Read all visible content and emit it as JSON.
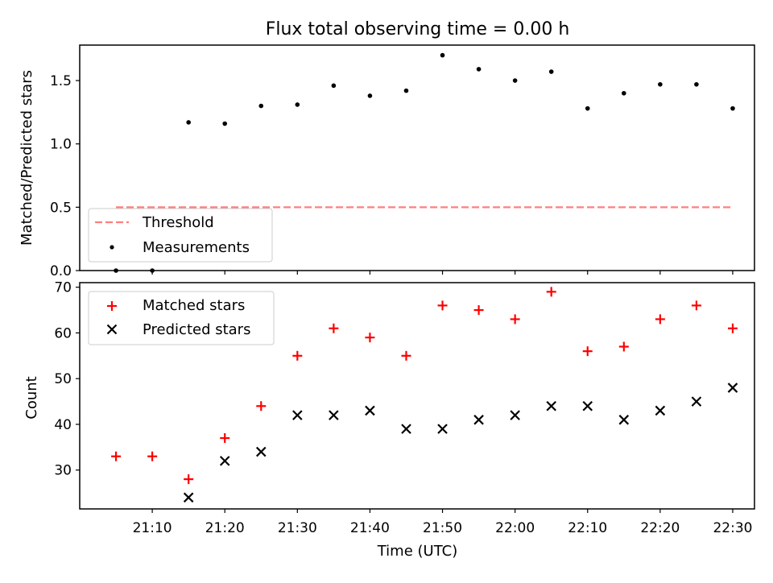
{
  "figure": {
    "title": "Flux total observing time = 0.00 h"
  },
  "chart_data": [
    {
      "type": "scatter",
      "panel": "top",
      "title": "Flux total observing time = 0.00 h",
      "xlabel": "",
      "ylabel": "Matched/Predicted stars",
      "x": [
        "21:05",
        "21:10",
        "21:15",
        "21:20",
        "21:25",
        "21:30",
        "21:35",
        "21:40",
        "21:45",
        "21:50",
        "21:55",
        "22:00",
        "22:05",
        "22:10",
        "22:15",
        "22:20",
        "22:25",
        "22:30"
      ],
      "xlim": [
        "21:00",
        "22:33"
      ],
      "ylim": [
        0,
        1.78
      ],
      "yticks": [
        0.0,
        0.5,
        1.0,
        1.5
      ],
      "ytick_labels": [
        "0.0",
        "0.5",
        "1.0",
        "1.5"
      ],
      "grid": false,
      "legend_position": "lower-left",
      "series": [
        {
          "name": "Threshold",
          "kind": "line",
          "style": "dashed",
          "color": "#ff7f7f",
          "x": [
            "21:05",
            "22:30"
          ],
          "values": [
            0.5,
            0.5
          ]
        },
        {
          "name": "Measurements",
          "kind": "scatter",
          "marker": "dot",
          "color": "#000000",
          "values": [
            0.0,
            0.0,
            1.17,
            1.16,
            1.3,
            1.31,
            1.46,
            1.38,
            1.42,
            1.7,
            1.59,
            1.5,
            1.57,
            1.28,
            1.4,
            1.47,
            1.47,
            1.28
          ]
        }
      ]
    },
    {
      "type": "scatter",
      "panel": "bottom",
      "xlabel": "Time (UTC)",
      "ylabel": "Count",
      "x": [
        "21:05",
        "21:10",
        "21:15",
        "21:20",
        "21:25",
        "21:30",
        "21:35",
        "21:40",
        "21:45",
        "21:50",
        "21:55",
        "22:00",
        "22:05",
        "22:10",
        "22:15",
        "22:20",
        "22:25",
        "22:30"
      ],
      "xlim": [
        "21:00",
        "22:33"
      ],
      "xticks": [
        "21:10",
        "21:20",
        "21:30",
        "21:40",
        "21:50",
        "22:00",
        "22:10",
        "22:20",
        "22:30"
      ],
      "ylim": [
        21.5,
        71
      ],
      "yticks": [
        30,
        40,
        50,
        60,
        70
      ],
      "ytick_labels": [
        "30",
        "40",
        "50",
        "60",
        "70"
      ],
      "grid": false,
      "legend_position": "upper-left",
      "series": [
        {
          "name": "Matched stars",
          "marker": "plus",
          "color": "#ff0000",
          "values": [
            33,
            33,
            28,
            37,
            44,
            55,
            61,
            59,
            55,
            66,
            65,
            63,
            69,
            56,
            57,
            63,
            66,
            61
          ]
        },
        {
          "name": "Predicted stars",
          "marker": "x",
          "color": "#000000",
          "values": [
            null,
            null,
            24,
            32,
            34,
            42,
            42,
            43,
            39,
            39,
            41,
            42,
            44,
            44,
            41,
            43,
            45,
            48
          ]
        }
      ]
    }
  ]
}
